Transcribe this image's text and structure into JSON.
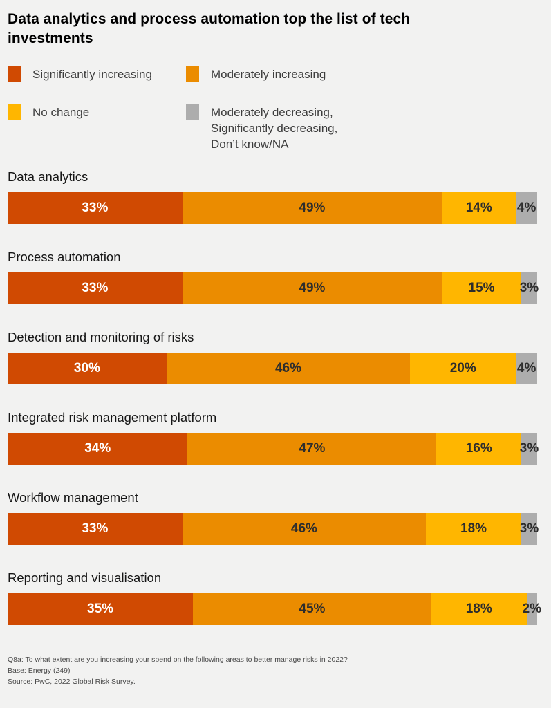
{
  "title": "Data analytics and process automation top the list of tech investments",
  "colors": {
    "background": "#f2f2f1",
    "significantly_increasing": "#d04a02",
    "moderately_increasing": "#eb8c00",
    "no_change": "#ffb600",
    "decreasing_dont_know": "#adadad",
    "bar_label_dark": "#2d2d2d",
    "bar_label_light": "#ffffff"
  },
  "legend": [
    {
      "label": "Significantly increasing",
      "color": "#d04a02"
    },
    {
      "label": "Moderately increasing",
      "color": "#eb8c00"
    },
    {
      "label": "No change",
      "color": "#ffb600"
    },
    {
      "label": "Moderately decreasing,\nSignificantly decreasing,\nDon’t know/NA",
      "color": "#adadad"
    }
  ],
  "chart_data": {
    "type": "bar",
    "orientation": "horizontal-stacked",
    "value_suffix": "%",
    "xlim": [
      0,
      100
    ],
    "grid": false,
    "legend_position": "top",
    "title": "Data analytics and process automation top the list of tech investments",
    "categories": [
      "Data analytics",
      "Process automation",
      "Detection and monitoring of risks",
      "Integrated risk management platform",
      "Workflow management",
      "Reporting and visualisation"
    ],
    "series": [
      {
        "name": "Significantly increasing",
        "color": "#d04a02",
        "values": [
          33,
          33,
          30,
          34,
          33,
          35
        ]
      },
      {
        "name": "Moderately increasing",
        "color": "#eb8c00",
        "values": [
          49,
          49,
          46,
          47,
          46,
          45
        ]
      },
      {
        "name": "No change",
        "color": "#ffb600",
        "values": [
          14,
          15,
          20,
          16,
          18,
          18
        ]
      },
      {
        "name": "Moderately decreasing, Significantly decreasing, Don’t know/NA",
        "color": "#adadad",
        "values": [
          4,
          3,
          4,
          3,
          3,
          2
        ]
      }
    ]
  },
  "footer": {
    "question": "Q8a: To what extent are you increasing your spend on the following areas to better manage risks in 2022?",
    "base": "Base: Energy (249)",
    "source": "Source: PwC, 2022 Global Risk Survey."
  }
}
